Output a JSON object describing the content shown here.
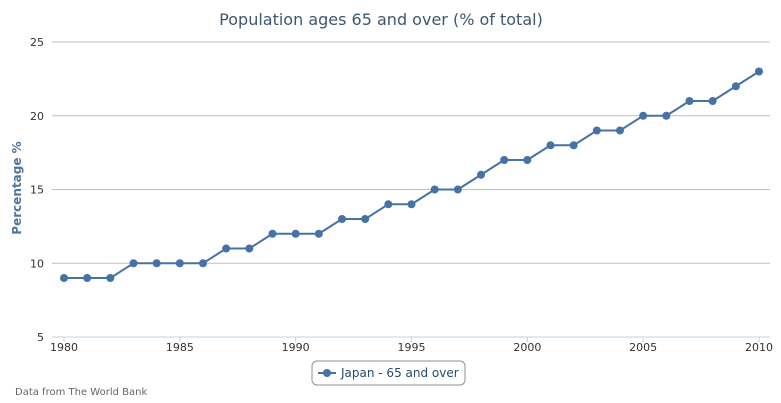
{
  "chart_data": {
    "type": "line",
    "title": "Population ages 65 and over (% of total)",
    "xlabel": "",
    "ylabel": "Percentage %",
    "xlim": [
      1980,
      2010
    ],
    "ylim": [
      5,
      25
    ],
    "x_ticks": [
      "1980",
      "1985",
      "1990",
      "1995",
      "2000",
      "2005",
      "2010"
    ],
    "y_ticks": [
      "5",
      "10",
      "15",
      "20",
      "25"
    ],
    "grid": true,
    "legend_position": "bottom-center",
    "x": [
      1980,
      1981,
      1982,
      1983,
      1984,
      1985,
      1986,
      1987,
      1988,
      1989,
      1990,
      1991,
      1992,
      1993,
      1994,
      1995,
      1996,
      1997,
      1998,
      1999,
      2000,
      2001,
      2002,
      2003,
      2004,
      2005,
      2006,
      2007,
      2008,
      2009,
      2010
    ],
    "series": [
      {
        "name": "Japan - 65 and over",
        "color": "#4572a7",
        "values": [
          9,
          9,
          9,
          10,
          10,
          10,
          10,
          11,
          11,
          12,
          12,
          12,
          13,
          13,
          14,
          14,
          15,
          15,
          16,
          17,
          17,
          18,
          18,
          19,
          19,
          20,
          20,
          21,
          21,
          22,
          23
        ]
      }
    ],
    "credit": "Data from The World Bank"
  }
}
